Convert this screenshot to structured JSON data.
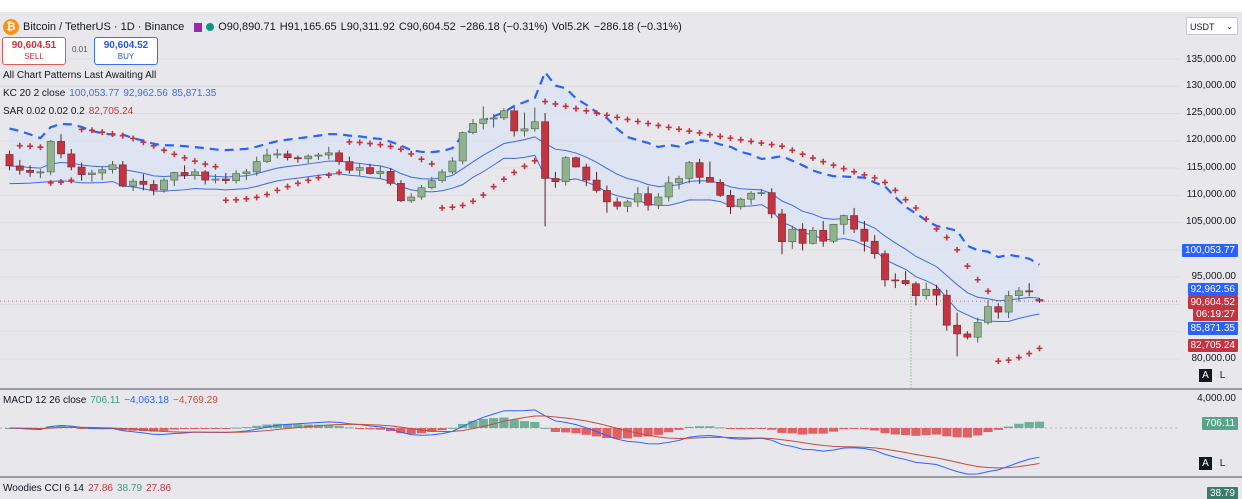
{
  "header": {
    "symbol_title": "Bitcoin / TetherUS · 1D · Binance",
    "ohlc": [
      {
        "k": "O",
        "v": "90,890.71"
      },
      {
        "k": "H",
        "v": "91,165.65"
      },
      {
        "k": "L",
        "v": "90,311.92"
      },
      {
        "k": "C",
        "v": "90,604.52"
      }
    ],
    "change": "−286.18 (−0.31%)",
    "volume_label": "Vol",
    "volume_value": "5.2K",
    "volume_change": "−286.18 (−0.31%)"
  },
  "trade": {
    "sell_price": "90,604.51",
    "sell_label": "SELL",
    "spread": "0.01",
    "buy_price": "90,604.52",
    "buy_label": "BUY"
  },
  "indicators": {
    "patterns": "All Chart Patterns Last Awaiting All",
    "kc_label": "KC 20 2 close",
    "kc_values": [
      "100,053.77",
      "92,962.56",
      "85,871.35"
    ],
    "sar_label": "SAR 0.02 0.02 0.2",
    "sar_value": "82,705.24",
    "macd_label": "MACD 12 26 close",
    "macd_values": [
      "706.11",
      "−4,063.18",
      "−4,769.29"
    ],
    "cci_label": "Woodies CCI 6 14",
    "cci_values": [
      "27.86",
      "38.79",
      "27.86"
    ]
  },
  "axis": {
    "currency": "USDT",
    "price_ticks": [
      "135,000.00",
      "130,000.00",
      "125,000.00",
      "120,000.00",
      "115,000.00",
      "110,000.00",
      "105,000.00",
      "95,000.00",
      "80,000.00"
    ],
    "macd_ticks": [
      "4,000.00"
    ],
    "badges": {
      "kc_upper": "100,053.77",
      "kc_mid": "92,962.56",
      "last_price": "90,604.52",
      "countdown": "06:19:27",
      "kc_lower": "85,871.35",
      "sar": "82,705.24",
      "macd": "706.11",
      "cci": "38.79"
    },
    "auto_label": "A",
    "log_label": "L"
  },
  "colors": {
    "up": "#8fb38a",
    "down": "#c2343f",
    "kc_dash": "#2962ff",
    "kc_line": "#3d6bde",
    "sar": "#c8333b",
    "macd_line": "#2962ff",
    "signal_line": "#c24d3d",
    "hist_pos": "#5aa58a",
    "hist_neg": "#e0474c"
  },
  "chart_data": {
    "type": "candlestick",
    "title": "Bitcoin / TetherUS · 1D · Binance",
    "y_range": [
      76000,
      137000
    ],
    "candles": [
      [
        117500,
        118200,
        114600,
        115400
      ],
      [
        115400,
        116500,
        113800,
        114600
      ],
      [
        114600,
        115500,
        113400,
        114200
      ],
      [
        114200,
        114800,
        113200,
        114300
      ],
      [
        114300,
        120200,
        113700,
        119900
      ],
      [
        119900,
        121200,
        116800,
        117600
      ],
      [
        117600,
        118500,
        114600,
        115200
      ],
      [
        115200,
        116000,
        112700,
        113800
      ],
      [
        113800,
        114700,
        112500,
        114100
      ],
      [
        114100,
        115300,
        112800,
        114700
      ],
      [
        114700,
        116300,
        114000,
        115600
      ],
      [
        115600,
        116300,
        111500,
        111700
      ],
      [
        111700,
        113100,
        110800,
        112600
      ],
      [
        112600,
        113900,
        110900,
        112000
      ],
      [
        112000,
        112800,
        110000,
        111000
      ],
      [
        111000,
        113200,
        110500,
        112800
      ],
      [
        112800,
        114300,
        111700,
        114200
      ],
      [
        114200,
        115500,
        113000,
        113700
      ],
      [
        113700,
        114900,
        112900,
        114300
      ],
      [
        114300,
        114600,
        112000,
        112800
      ],
      [
        112800,
        113900,
        112200,
        113000
      ],
      [
        113000,
        114100,
        112100,
        112700
      ],
      [
        112700,
        114600,
        112200,
        114000
      ],
      [
        114000,
        114800,
        112800,
        114300
      ],
      [
        114300,
        117100,
        113600,
        116200
      ],
      [
        116200,
        118600,
        115900,
        117400
      ],
      [
        117400,
        118500,
        116800,
        117600
      ],
      [
        117600,
        118200,
        116400,
        116900
      ],
      [
        116900,
        117300,
        116000,
        116700
      ],
      [
        116700,
        117500,
        115900,
        117200
      ],
      [
        117200,
        117800,
        116500,
        117400
      ],
      [
        117400,
        118900,
        116600,
        117800
      ],
      [
        117800,
        118300,
        115600,
        116200
      ],
      [
        116200,
        117100,
        114000,
        114600
      ],
      [
        114600,
        115900,
        113600,
        115100
      ],
      [
        115100,
        115800,
        113800,
        114000
      ],
      [
        114000,
        115300,
        113100,
        114400
      ],
      [
        114400,
        115000,
        111800,
        112200
      ],
      [
        112200,
        112800,
        108800,
        109000
      ],
      [
        109000,
        110400,
        108600,
        109700
      ],
      [
        109700,
        111900,
        109200,
        111400
      ],
      [
        111400,
        113400,
        111100,
        112700
      ],
      [
        112700,
        114800,
        112300,
        114300
      ],
      [
        114300,
        117000,
        113900,
        116300
      ],
      [
        116300,
        121700,
        115700,
        121500
      ],
      [
        121500,
        124000,
        121200,
        123200
      ],
      [
        123200,
        126300,
        122100,
        124000
      ],
      [
        124000,
        124900,
        122400,
        124200
      ],
      [
        124200,
        126000,
        123800,
        125500
      ],
      [
        125500,
        126200,
        120800,
        121800
      ],
      [
        121800,
        125200,
        120800,
        122200
      ],
      [
        122200,
        126100,
        121700,
        123500
      ],
      [
        123500,
        125100,
        104300,
        113100
      ],
      [
        113100,
        114300,
        111400,
        112500
      ],
      [
        112500,
        117200,
        111800,
        116900
      ],
      [
        116900,
        117100,
        115100,
        115200
      ],
      [
        115200,
        115800,
        111700,
        112800
      ],
      [
        112800,
        114300,
        110500,
        110900
      ],
      [
        110900,
        111800,
        106800,
        108800
      ],
      [
        108800,
        109600,
        107400,
        108000
      ],
      [
        108000,
        109200,
        106900,
        108800
      ],
      [
        108800,
        111500,
        107900,
        110300
      ],
      [
        110300,
        111600,
        107200,
        108200
      ],
      [
        108200,
        110400,
        107500,
        109700
      ],
      [
        109700,
        113500,
        108900,
        112300
      ],
      [
        112300,
        113600,
        111100,
        113100
      ],
      [
        113100,
        116300,
        112200,
        116000
      ],
      [
        116000,
        116700,
        112100,
        113300
      ],
      [
        113300,
        116200,
        112700,
        112400
      ],
      [
        112400,
        113000,
        109700,
        110000
      ],
      [
        110000,
        111000,
        106600,
        107900
      ],
      [
        107900,
        109600,
        107400,
        109300
      ],
      [
        109300,
        110800,
        108300,
        110400
      ],
      [
        110400,
        111200,
        109900,
        110500
      ],
      [
        110500,
        111300,
        105800,
        106600
      ],
      [
        106600,
        107500,
        99200,
        101500
      ],
      [
        101500,
        104400,
        100200,
        103800
      ],
      [
        103800,
        104900,
        99900,
        101200
      ],
      [
        101200,
        104200,
        101000,
        103600
      ],
      [
        103600,
        105300,
        100600,
        101600
      ],
      [
        101600,
        104800,
        101300,
        104700
      ],
      [
        104700,
        106500,
        102800,
        106300
      ],
      [
        106300,
        107700,
        103100,
        103800
      ],
      [
        103800,
        105300,
        99700,
        101600
      ],
      [
        101600,
        102700,
        98400,
        99300
      ],
      [
        99300,
        99900,
        93300,
        94500
      ],
      [
        94500,
        95700,
        93000,
        94400
      ],
      [
        94400,
        96100,
        93500,
        93800
      ],
      [
        93800,
        94200,
        89800,
        91600
      ],
      [
        91600,
        94000,
        90900,
        92800
      ],
      [
        92800,
        93600,
        89800,
        91700
      ],
      [
        91700,
        92700,
        85200,
        86200
      ],
      [
        86200,
        88500,
        80500,
        84600
      ],
      [
        84600,
        85100,
        83600,
        84000
      ],
      [
        84000,
        87600,
        83000,
        86700
      ],
      [
        86700,
        90800,
        86300,
        89600
      ],
      [
        89600,
        90200,
        87400,
        88600
      ],
      [
        88600,
        92500,
        87500,
        91600
      ],
      [
        91600,
        93200,
        90500,
        92500
      ],
      [
        92500,
        93900,
        91500,
        92300
      ],
      [
        90890.71,
        91165.65,
        90311.92,
        90604.52
      ]
    ],
    "keltner": {
      "upper_end": 100053.77,
      "middle_end": 92962.56,
      "lower_end": 85871.35
    },
    "parabolic_sar_last": 82705.24,
    "macd": {
      "macd": 706.11,
      "signal": -4063.18,
      "histogram": -4769.29
    }
  }
}
